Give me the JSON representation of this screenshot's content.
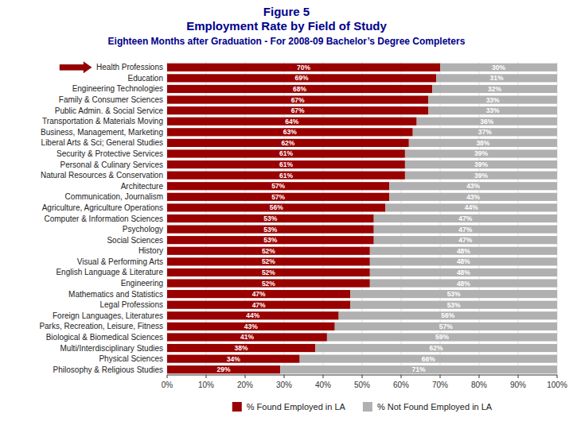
{
  "chart_data": {
    "type": "bar",
    "orientation": "horizontal",
    "stacked": true,
    "title": "Figure 5",
    "subtitle": [
      "Employment Rate by Field of Study",
      "Eighteen Months after Graduation - For 2008-09 Bachelor’s Degree Completers"
    ],
    "categories": [
      "Health Professions",
      "Education",
      "Engineering Technologies",
      "Family & Consumer Sciences",
      "Public Admin. & Social Service",
      "Transportation & Materials Moving",
      "Business, Management, Marketing",
      "Liberal Arts & Sci; General Studies",
      "Security & Protective Services",
      "Personal & Culinary Services",
      "Natural Resources & Conservation",
      "Architecture",
      "Communication, Journalism",
      "Agriculture, Agriculture Operations",
      "Computer & Information Sciences",
      "Psychology",
      "Social Sciences",
      "History",
      "Visual & Performing Arts",
      "English Language & Literature",
      "Engineering",
      "Mathematics and Statistics",
      "Legal Professions",
      "Foreign Languages, Literatures",
      "Parks, Recreation, Leisure, Fitness",
      "Biological & Biomedical Sciences",
      "Multi/Interdisciplinary Studies",
      "Physical Sciences",
      "Philosophy & Religious Studies"
    ],
    "series": [
      {
        "name": "% Found Employed in LA",
        "color": "#990000",
        "values": [
          70,
          69,
          68,
          67,
          67,
          64,
          63,
          62,
          61,
          61,
          61,
          57,
          57,
          56,
          53,
          53,
          53,
          52,
          52,
          52,
          52,
          47,
          47,
          44,
          43,
          41,
          38,
          34,
          29
        ],
        "value_labels": [
          "70%",
          "69%",
          "68%",
          "67%",
          "67%",
          "64%",
          "63%",
          "62%",
          "61%",
          "61%",
          "61%",
          "57%",
          "57%",
          "56%",
          "53%",
          "53%",
          "53%",
          "52%",
          "52%",
          "52%",
          "52%",
          "47%",
          "47%",
          "44%",
          "43%",
          "41%",
          "38%",
          "34%",
          "29%"
        ]
      },
      {
        "name": "% Not Found Employed in LA",
        "color": "#B0B0B0",
        "values": [
          30,
          31,
          32,
          33,
          33,
          36,
          37,
          38,
          39,
          39,
          39,
          43,
          43,
          44,
          47,
          47,
          47,
          48,
          48,
          48,
          48,
          53,
          53,
          56,
          57,
          59,
          62,
          66,
          71
        ],
        "value_labels": [
          "30%",
          "31%",
          "32%",
          "33%",
          "33%",
          "36%",
          "37%",
          "38%",
          "39%",
          "39%",
          "39%",
          "43%",
          "43%",
          "44%",
          "47%",
          "47%",
          "47%",
          "48%",
          "48%",
          "48%",
          "48%",
          "53%",
          "53%",
          "56%",
          "57%",
          "59%",
          "62%",
          "66%",
          "71%"
        ]
      }
    ],
    "xlim": [
      0,
      100
    ],
    "xticks": [
      {
        "value": 0,
        "label": "0%"
      },
      {
        "value": 10,
        "label": "10%"
      },
      {
        "value": 20,
        "label": "20%"
      },
      {
        "value": 30,
        "label": "30%"
      },
      {
        "value": 40,
        "label": "40%"
      },
      {
        "value": 50,
        "label": "50%"
      },
      {
        "value": 60,
        "label": "60%"
      },
      {
        "value": 70,
        "label": "70%"
      },
      {
        "value": 80,
        "label": "80%"
      },
      {
        "value": 90,
        "label": "90%"
      },
      {
        "value": 100,
        "label": "100%"
      }
    ],
    "grid": true,
    "data_labels": true,
    "legend": "bottom"
  }
}
